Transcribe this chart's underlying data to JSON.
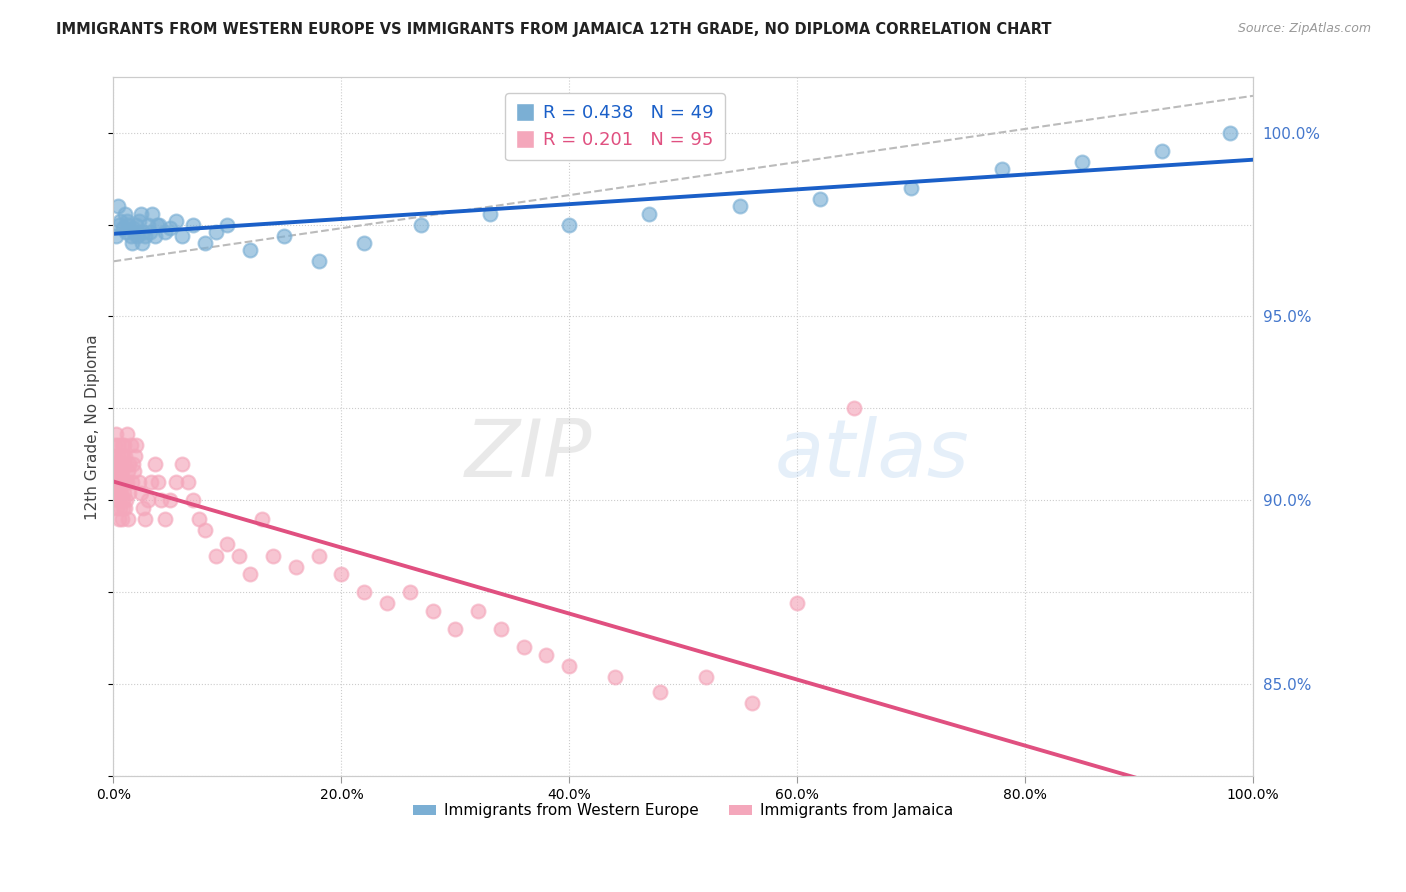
{
  "title": "IMMIGRANTS FROM WESTERN EUROPE VS IMMIGRANTS FROM JAMAICA 12TH GRADE, NO DIPLOMA CORRELATION CHART",
  "source": "Source: ZipAtlas.com",
  "ylabel": "12th Grade, No Diploma",
  "legend_blue": "Immigrants from Western Europe",
  "legend_pink": "Immigrants from Jamaica",
  "r_blue": 0.438,
  "n_blue": 49,
  "r_pink": 0.201,
  "n_pink": 95,
  "color_blue": "#7BAFD4",
  "color_pink": "#F4A7BB",
  "color_line_blue": "#1A5FC8",
  "color_line_pink": "#E05080",
  "color_diag": "#BBBBBB",
  "xmin": 0,
  "xmax": 100,
  "ymin": 82.5,
  "ymax": 101.5,
  "right_yticks": [
    85.0,
    90.0,
    95.0,
    100.0
  ],
  "right_tick_color": "#4477CC",
  "blue_x": [
    0.2,
    0.4,
    0.5,
    0.6,
    0.8,
    1.0,
    1.1,
    1.2,
    1.3,
    1.5,
    1.6,
    1.7,
    1.8,
    2.0,
    2.1,
    2.2,
    2.4,
    2.5,
    2.6,
    2.8,
    3.0,
    3.2,
    3.4,
    3.6,
    3.8,
    4.0,
    4.5,
    5.0,
    5.5,
    6.0,
    7.0,
    8.0,
    9.0,
    10.0,
    12.0,
    15.0,
    18.0,
    22.0,
    27.0,
    33.0,
    40.0,
    47.0,
    55.0,
    62.0,
    70.0,
    78.0,
    85.0,
    92.0,
    98.0
  ],
  "blue_y": [
    97.2,
    98.0,
    97.5,
    97.6,
    97.4,
    97.8,
    97.3,
    97.6,
    97.5,
    97.2,
    97.0,
    97.4,
    97.3,
    97.5,
    97.2,
    97.6,
    97.8,
    97.0,
    97.3,
    97.2,
    97.5,
    97.3,
    97.8,
    97.2,
    97.5,
    97.5,
    97.3,
    97.4,
    97.6,
    97.2,
    97.5,
    97.0,
    97.3,
    97.5,
    96.8,
    97.2,
    96.5,
    97.0,
    97.5,
    97.8,
    97.5,
    97.8,
    98.0,
    98.2,
    98.5,
    99.0,
    99.2,
    99.5,
    100.0
  ],
  "pink_x": [
    0.05,
    0.08,
    0.1,
    0.12,
    0.15,
    0.18,
    0.2,
    0.22,
    0.25,
    0.28,
    0.3,
    0.32,
    0.35,
    0.38,
    0.4,
    0.42,
    0.45,
    0.48,
    0.5,
    0.52,
    0.55,
    0.58,
    0.6,
    0.62,
    0.65,
    0.68,
    0.7,
    0.72,
    0.75,
    0.78,
    0.8,
    0.82,
    0.85,
    0.88,
    0.9,
    0.92,
    0.95,
    0.98,
    1.0,
    1.05,
    1.1,
    1.15,
    1.2,
    1.25,
    1.3,
    1.35,
    1.4,
    1.5,
    1.6,
    1.7,
    1.8,
    1.9,
    2.0,
    2.2,
    2.4,
    2.6,
    2.8,
    3.0,
    3.3,
    3.6,
    3.9,
    4.2,
    4.5,
    5.0,
    5.5,
    6.0,
    6.5,
    7.0,
    7.5,
    8.0,
    9.0,
    10.0,
    11.0,
    12.0,
    13.0,
    14.0,
    16.0,
    18.0,
    20.0,
    22.0,
    24.0,
    26.0,
    28.0,
    30.0,
    32.0,
    34.0,
    36.0,
    38.0,
    40.0,
    44.0,
    48.0,
    52.0,
    56.0,
    60.0,
    65.0
  ],
  "pink_y": [
    90.5,
    91.2,
    90.8,
    91.5,
    90.2,
    91.0,
    90.5,
    91.8,
    90.3,
    91.0,
    90.5,
    89.8,
    90.2,
    91.2,
    90.0,
    91.5,
    89.5,
    90.8,
    90.2,
    91.0,
    90.5,
    90.8,
    89.8,
    91.2,
    90.5,
    91.0,
    90.2,
    89.5,
    90.8,
    91.5,
    90.0,
    91.2,
    89.8,
    90.5,
    91.0,
    90.2,
    91.5,
    89.8,
    90.5,
    91.2,
    90.0,
    91.8,
    90.5,
    90.8,
    89.5,
    91.0,
    90.2,
    91.5,
    90.5,
    91.0,
    90.8,
    91.2,
    91.5,
    90.5,
    90.2,
    89.8,
    89.5,
    90.0,
    90.5,
    91.0,
    90.5,
    90.0,
    89.5,
    90.0,
    90.5,
    91.0,
    90.5,
    90.0,
    89.5,
    89.2,
    88.5,
    88.8,
    88.5,
    88.0,
    89.5,
    88.5,
    88.2,
    88.5,
    88.0,
    87.5,
    87.2,
    87.5,
    87.0,
    86.5,
    87.0,
    86.5,
    86.0,
    85.8,
    85.5,
    85.2,
    84.8,
    85.2,
    84.5,
    87.2,
    92.5
  ]
}
